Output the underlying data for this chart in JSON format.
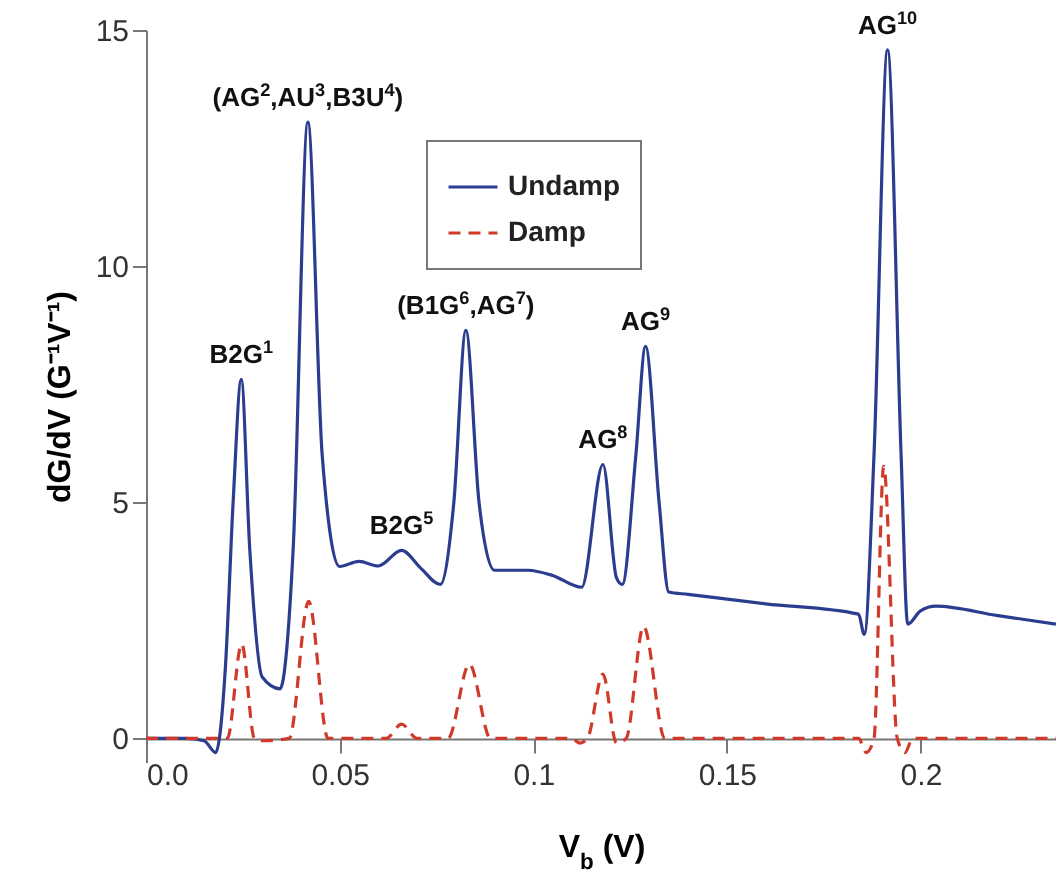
{
  "chart_data": {
    "type": "line",
    "xlabel": "V$_{b}$ (V)",
    "ylabel": "dG/dV (G⁻¹V⁻¹)",
    "xlim": [
      0,
      0.235
    ],
    "xticks": [
      {
        "value": 0,
        "label": "0.0"
      },
      0.05,
      0.1,
      0.15,
      0.2
    ],
    "ylim": [
      -0.5,
      15
    ],
    "yticks": [
      0,
      5,
      10,
      15
    ],
    "grid": false,
    "legend": "top left",
    "series": [
      {
        "name": "Undamp",
        "color": "#2b3d8f",
        "line_style": "solid",
        "x": [
          0,
          0.01,
          0.015,
          0.018,
          0.0205,
          0.0225,
          0.0246,
          0.0268,
          0.03,
          0.0346,
          0.038,
          0.0418,
          0.0455,
          0.05,
          0.055,
          0.06,
          0.066,
          0.071,
          0.076,
          0.0795,
          0.0826,
          0.086,
          0.09,
          0.0986,
          0.105,
          0.1125,
          0.118,
          0.1215,
          0.123,
          0.1265,
          0.129,
          0.1325,
          0.135,
          0.14,
          0.16,
          0.184,
          0.1855,
          0.188,
          0.1915,
          0.195,
          0.1967,
          0.2,
          0.204,
          0.22,
          0.235
        ],
        "values": [
          0,
          0,
          -0.05,
          -0.3,
          1.5,
          5,
          7.6,
          4,
          1.3,
          1.05,
          4,
          13.05,
          6,
          3.64,
          3.75,
          3.65,
          3.98,
          3.6,
          3.26,
          5,
          8.64,
          5,
          3.56,
          3.56,
          3.45,
          3.2,
          5.8,
          3.4,
          3.26,
          6,
          8.3,
          5,
          3.1,
          3.05,
          2.85,
          2.63,
          2.2,
          6,
          14.58,
          6,
          2.42,
          2.7,
          2.8,
          2.6,
          2.42
        ]
      },
      {
        "name": "Damp",
        "color": "#d03a2a",
        "line_style": "dashed",
        "x": [
          0,
          0.021,
          0.0247,
          0.028,
          0.03,
          0.037,
          0.042,
          0.047,
          0.062,
          0.066,
          0.07,
          0.078,
          0.0835,
          0.089,
          0.11,
          0.112,
          0.114,
          0.118,
          0.1215,
          0.124,
          0.1285,
          0.134,
          0.184,
          0.186,
          0.188,
          0.1905,
          0.194,
          0.196,
          0.198,
          0.235
        ],
        "values": [
          0,
          0,
          2.0,
          0,
          -0.05,
          0,
          2.9,
          0,
          0,
          0.3,
          0,
          0,
          1.57,
          0,
          0,
          -0.1,
          0,
          1.36,
          -0.1,
          0,
          2.37,
          0,
          0,
          -0.3,
          0,
          5.76,
          0,
          -0.3,
          0,
          0
        ]
      }
    ],
    "annotations": [
      {
        "text": "B2G$^{1}$",
        "x": 0.0246,
        "y": 7.6
      },
      {
        "text": "(AG$^{2}$,AU$^{3}$,B3U$^{4}$)",
        "x": 0.0418,
        "y": 13.05
      },
      {
        "text": "B2G$^{5}$",
        "x": 0.066,
        "y": 3.98
      },
      {
        "text": "(B1G$^{6}$,AG$^{7}$)",
        "x": 0.0826,
        "y": 8.64
      },
      {
        "text": "AG$^{8}$",
        "x": 0.118,
        "y": 5.8
      },
      {
        "text": "AG$^{9}$",
        "x": 0.129,
        "y": 8.3
      },
      {
        "text": "AG$^{10}$",
        "x": 0.1915,
        "y": 14.58
      }
    ]
  }
}
